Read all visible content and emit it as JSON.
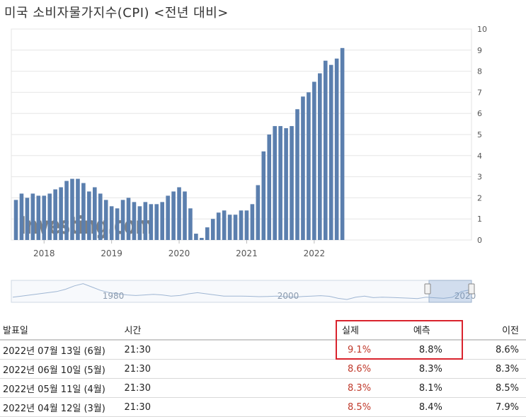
{
  "title": "미국 소비자물가지수(CPI) <전년 대비>",
  "chart_data": {
    "type": "bar",
    "title": "미국 소비자물가지수(CPI) <전년 대비>",
    "ylim": [
      0,
      10
    ],
    "y_ticks": [
      "0",
      "1",
      "2",
      "3",
      "4",
      "5",
      "6",
      "7",
      "8",
      "9",
      "10"
    ],
    "x_tick_labels": [
      "2018",
      "2019",
      "2020",
      "2021",
      "2022"
    ],
    "bar_color": "#5b7fae",
    "start": "2017-08",
    "values": [
      1.9,
      2.2,
      2.0,
      2.2,
      2.1,
      2.1,
      2.2,
      2.4,
      2.5,
      2.8,
      2.9,
      2.9,
      2.7,
      2.3,
      2.5,
      2.2,
      1.9,
      1.6,
      1.5,
      1.9,
      2.0,
      1.8,
      1.6,
      1.8,
      1.7,
      1.7,
      1.8,
      2.1,
      2.3,
      2.5,
      2.3,
      1.5,
      0.3,
      0.1,
      0.6,
      1.0,
      1.3,
      1.4,
      1.2,
      1.2,
      1.4,
      1.4,
      1.7,
      2.6,
      4.2,
      5.0,
      5.4,
      5.4,
      5.3,
      5.4,
      6.2,
      6.8,
      7.0,
      7.5,
      7.9,
      8.5,
      8.3,
      8.6,
      9.1
    ],
    "watermark": "Investing.com",
    "navigator_labels": [
      "1980",
      "2000",
      "2020"
    ]
  },
  "table": {
    "headers": {
      "date": "발표일",
      "time": "시간",
      "actual": "실제",
      "forecast": "예측",
      "previous": "이전"
    },
    "rows": [
      {
        "date": "2022년 07월 13일 (6월)",
        "time": "21:30",
        "actual": "9.1%",
        "forecast": "8.8%",
        "previous": "8.6%"
      },
      {
        "date": "2022년 06월 10일 (5월)",
        "time": "21:30",
        "actual": "8.6%",
        "forecast": "8.3%",
        "previous": "8.3%"
      },
      {
        "date": "2022년 05월 11일 (4월)",
        "time": "21:30",
        "actual": "8.3%",
        "forecast": "8.1%",
        "previous": "8.5%"
      },
      {
        "date": "2022년 04월 12일 (3월)",
        "time": "21:30",
        "actual": "8.5%",
        "forecast": "8.4%",
        "previous": "7.9%"
      }
    ]
  }
}
